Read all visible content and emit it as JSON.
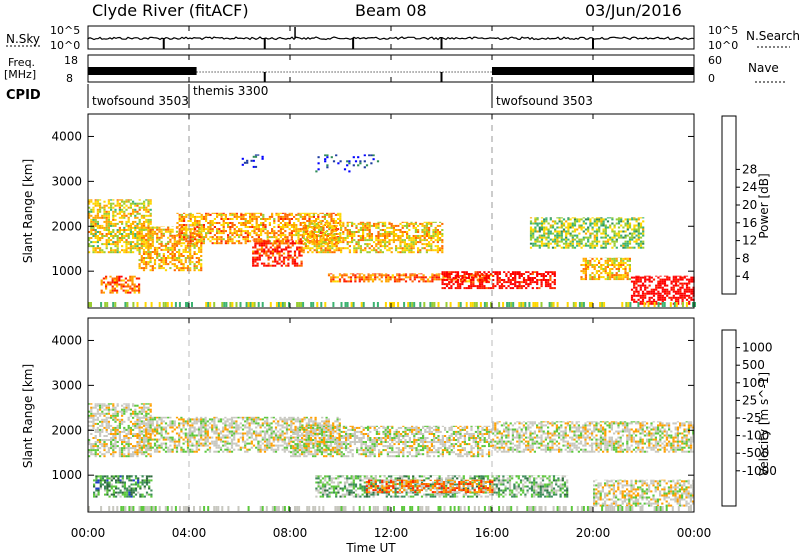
{
  "header": {
    "station": "Clyde River (fitACF)",
    "beam": "Beam 08",
    "date": "03/Jun/2016"
  },
  "nsky_panel": {
    "left_label": "N.Sky",
    "right_label": "N.Search",
    "left_ticks": [
      "10^5",
      "10^0"
    ],
    "right_ticks": [
      "10^5",
      "10^0"
    ]
  },
  "freq_panel": {
    "left_label_1": "Freq.",
    "left_label_2": "[MHz]",
    "right_label": "Nave",
    "left_ticks": [
      "18",
      "8"
    ],
    "right_ticks": [
      "60",
      "0"
    ]
  },
  "cpid": {
    "label": "CPID",
    "segments": [
      {
        "name": "twofsound 3503",
        "start_hour": 0,
        "end_hour": 4
      },
      {
        "name": "themis 3300",
        "start_hour": 4,
        "end_hour": 16
      },
      {
        "name": "twofsound 3503",
        "start_hour": 16,
        "end_hour": 24
      }
    ]
  },
  "time_axis": {
    "label": "Time UT",
    "ticks": [
      "00:00",
      "04:00",
      "08:00",
      "12:00",
      "16:00",
      "20:00",
      "00:00"
    ],
    "range_hours": [
      0,
      24
    ]
  },
  "chart_data": [
    {
      "type": "heatmap",
      "title": "",
      "xlabel": "",
      "ylabel": "Slant Range [km]",
      "xlim_hours": [
        0,
        24
      ],
      "ylim_km": [
        180,
        4500
      ],
      "y_ticks": [
        "1000",
        "2000",
        "3000",
        "4000"
      ],
      "colorbar": {
        "label": "Power [dB]",
        "ticks": [
          "4",
          "8",
          "12",
          "16",
          "20",
          "24",
          "28"
        ],
        "colors": [
          "#0000ff",
          "#1e3ca0",
          "#2e8b57",
          "#3cb371",
          "#9acd32",
          "#ffd700",
          "#ffa500",
          "#ff6a00",
          "#ff2000",
          "#ff0000"
        ]
      },
      "echo_bands": [
        {
          "t0": 0.0,
          "t1": 2.5,
          "r0": 1400,
          "r1": 2600,
          "level": 0.55
        },
        {
          "t0": 0.5,
          "t1": 2.0,
          "r0": 500,
          "r1": 900,
          "level": 0.75
        },
        {
          "t0": 2.0,
          "t1": 4.5,
          "r0": 1000,
          "r1": 2000,
          "level": 0.6
        },
        {
          "t0": 3.5,
          "t1": 10.0,
          "r0": 1600,
          "r1": 2300,
          "level": 0.65
        },
        {
          "t0": 6.5,
          "t1": 8.5,
          "r0": 1100,
          "r1": 1700,
          "level": 0.85
        },
        {
          "t0": 8.5,
          "t1": 14.0,
          "r0": 1400,
          "r1": 2100,
          "level": 0.6
        },
        {
          "t0": 9.5,
          "t1": 16.0,
          "r0": 750,
          "r1": 950,
          "level": 0.75
        },
        {
          "t0": 14.0,
          "t1": 18.5,
          "r0": 600,
          "r1": 1000,
          "level": 0.95
        },
        {
          "t0": 17.5,
          "t1": 22.0,
          "r0": 1500,
          "r1": 2200,
          "level": 0.45
        },
        {
          "t0": 19.5,
          "t1": 21.5,
          "r0": 800,
          "r1": 1300,
          "level": 0.6
        },
        {
          "t0": 21.5,
          "t1": 24.0,
          "r0": 250,
          "r1": 900,
          "level": 1.0
        },
        {
          "t0": 9.0,
          "t1": 11.5,
          "r0": 3200,
          "r1": 3600,
          "level": 0.1
        },
        {
          "t0": 6.0,
          "t1": 7.0,
          "r0": 3300,
          "r1": 3600,
          "level": 0.1
        }
      ]
    },
    {
      "type": "heatmap",
      "title": "",
      "xlabel": "Time UT",
      "ylabel": "Slant Range [km]",
      "xlim_hours": [
        0,
        24
      ],
      "ylim_km": [
        180,
        4500
      ],
      "y_ticks": [
        "1000",
        "2000",
        "3000",
        "4000"
      ],
      "colorbar": {
        "label": "Velocity [m s^-1]",
        "ticks": [
          "1000",
          "500",
          "100",
          "25",
          "-25",
          "-100",
          "-500",
          "-1000"
        ],
        "colors": [
          "#1e3cc8",
          "#2e6a3c",
          "#3c8c5a",
          "#5cc83c",
          "#c8c8c0",
          "#c8c8c0",
          "#ffa000",
          "#ff6400",
          "#ff2800",
          "#ff0000"
        ]
      },
      "echo_bands": [
        {
          "t0": 0.0,
          "t1": 2.5,
          "r0": 1400,
          "r1": 2600,
          "level": 0.5
        },
        {
          "t0": 0.2,
          "t1": 2.5,
          "r0": 500,
          "r1": 1000,
          "level": 0.25
        },
        {
          "t0": 2.0,
          "t1": 10.0,
          "r0": 1500,
          "r1": 2300,
          "level": 0.5
        },
        {
          "t0": 8.0,
          "t1": 16.0,
          "r0": 1400,
          "r1": 2100,
          "level": 0.5
        },
        {
          "t0": 9.0,
          "t1": 19.0,
          "r0": 500,
          "r1": 1000,
          "level": 0.35
        },
        {
          "t0": 11.0,
          "t1": 16.0,
          "r0": 600,
          "r1": 900,
          "level": 0.7
        },
        {
          "t0": 16.0,
          "t1": 24.0,
          "r0": 1500,
          "r1": 2200,
          "level": 0.5
        },
        {
          "t0": 20.0,
          "t1": 24.0,
          "r0": 300,
          "r1": 900,
          "level": 0.52
        }
      ]
    }
  ]
}
